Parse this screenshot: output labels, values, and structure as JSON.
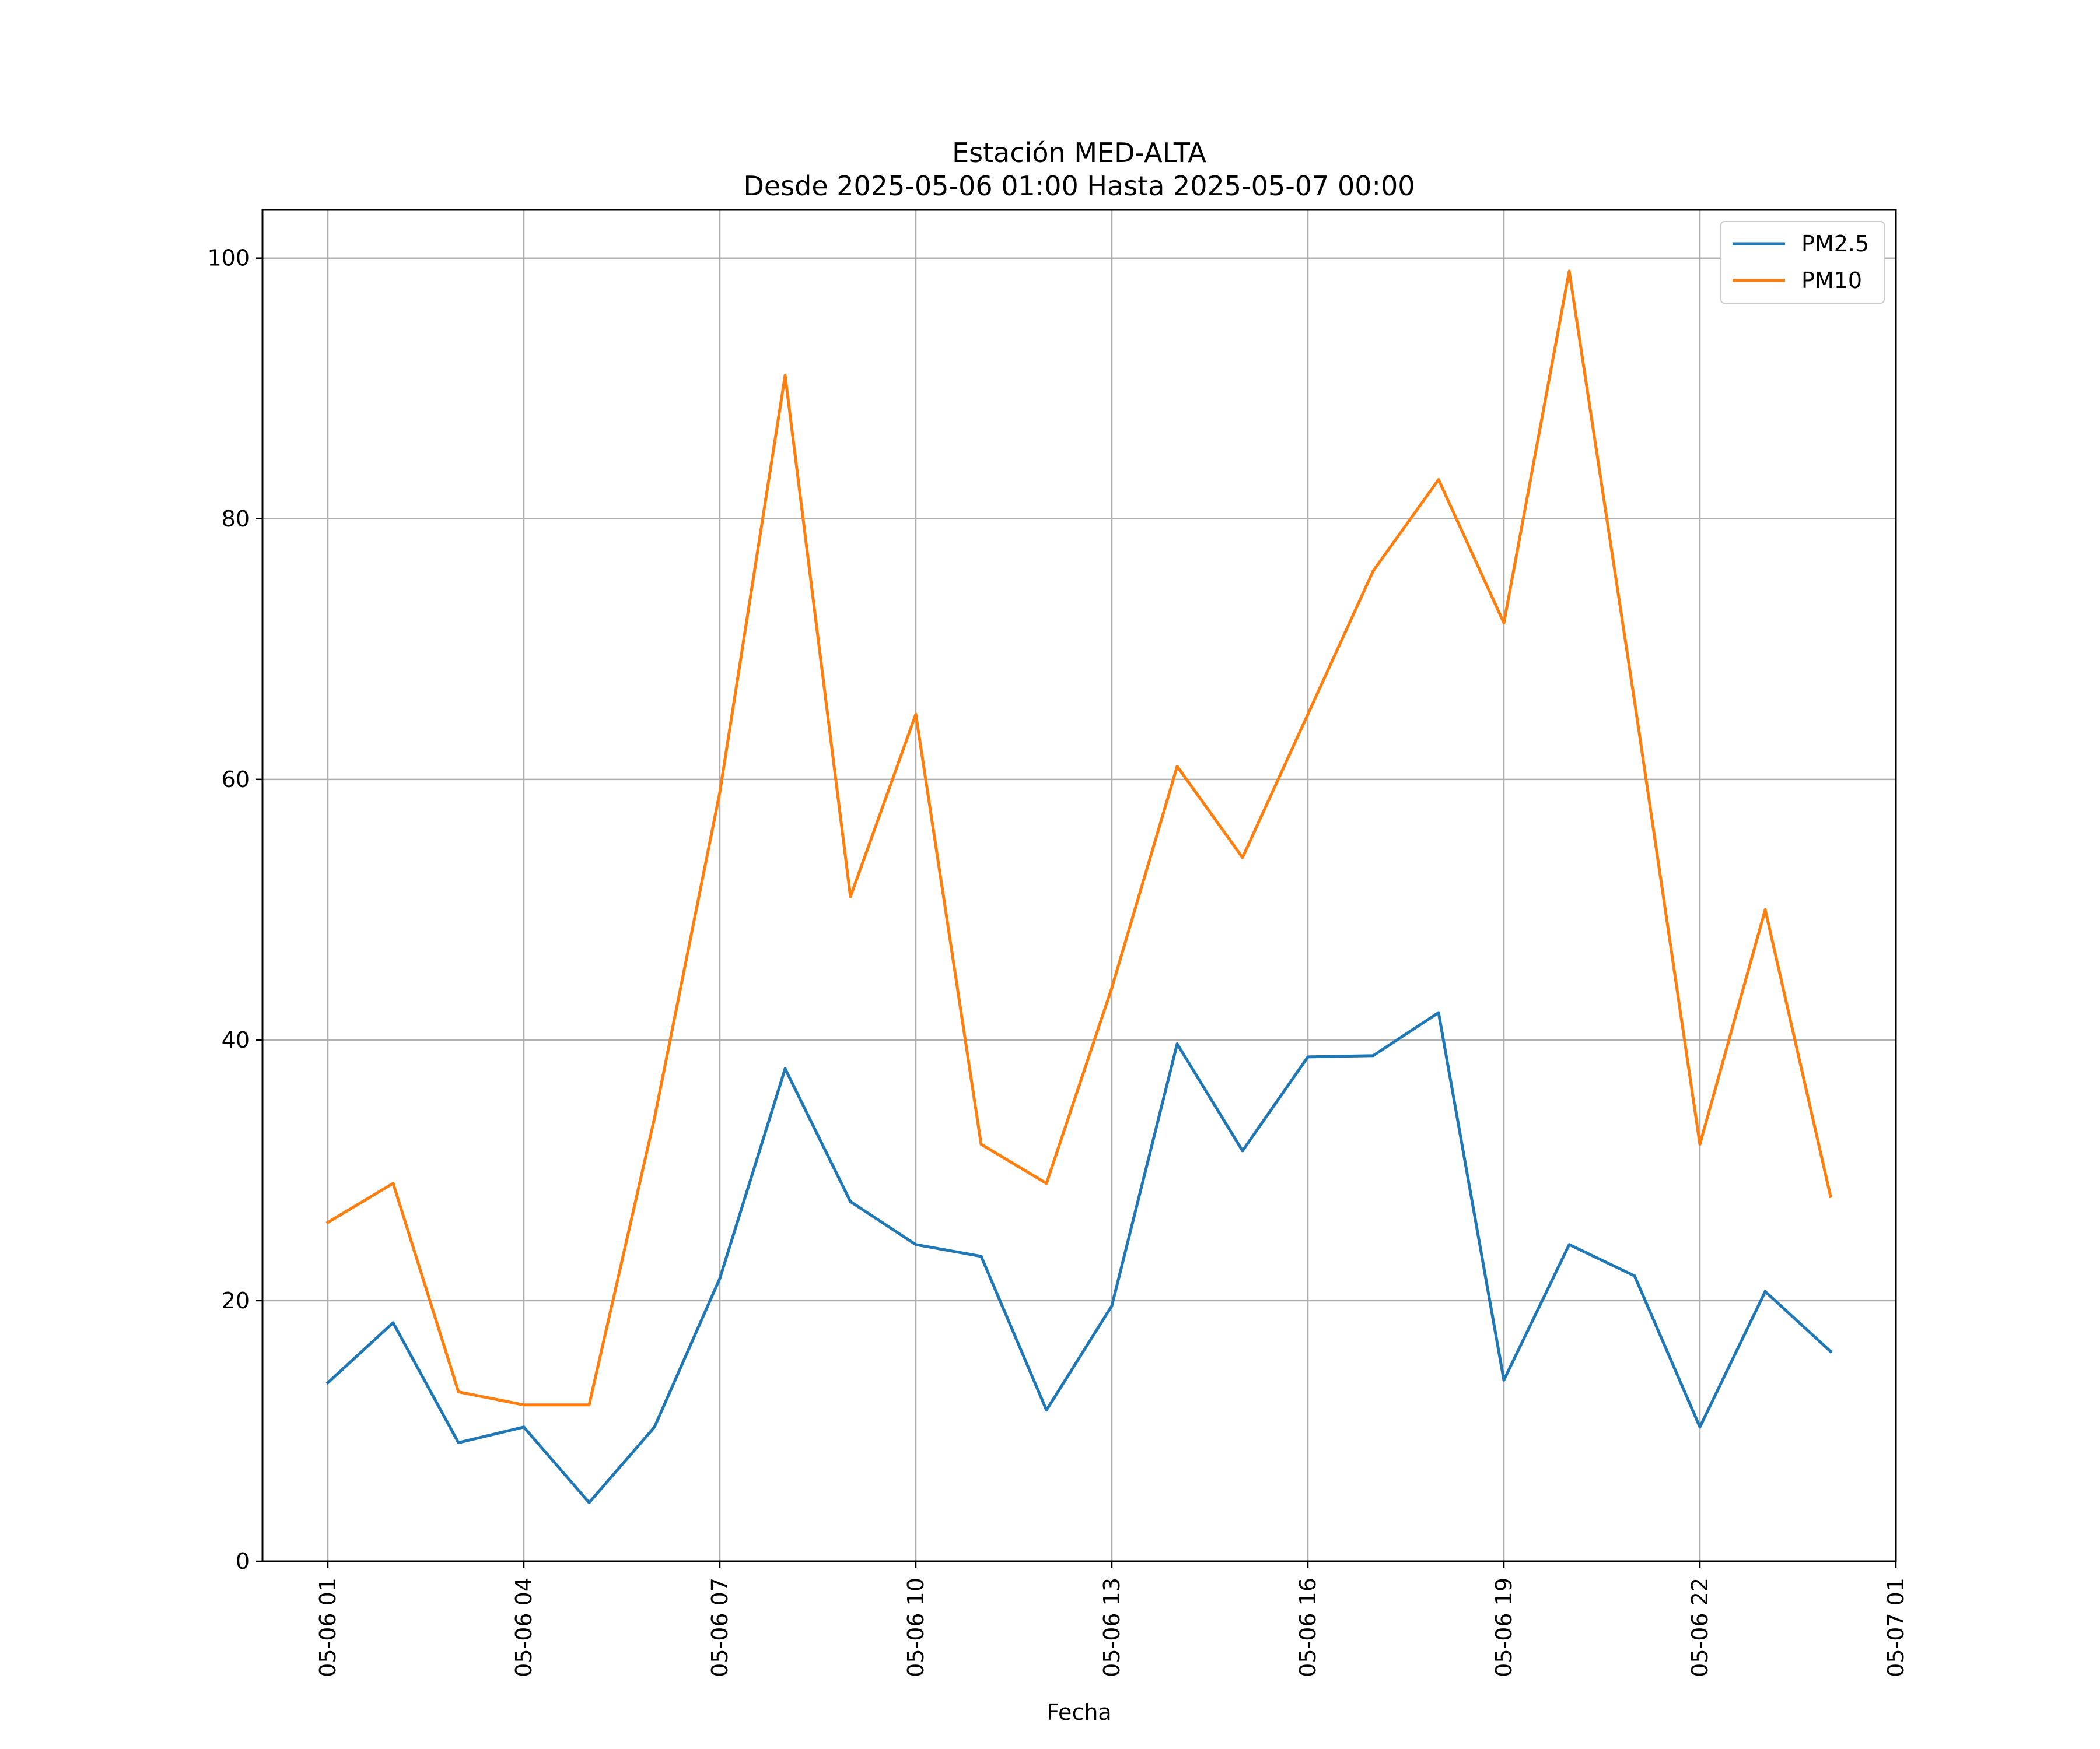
{
  "chart_data": {
    "type": "line",
    "title": "Estación MED-ALTA",
    "subtitle": "Desde 2025-05-06 01:00 Hasta 2025-05-07 00:00",
    "xlabel": "Fecha",
    "ylabel": "",
    "x": [
      "2025-05-06 01:00",
      "2025-05-06 02:00",
      "2025-05-06 03:00",
      "2025-05-06 04:00",
      "2025-05-06 05:00",
      "2025-05-06 06:00",
      "2025-05-06 07:00",
      "2025-05-06 08:00",
      "2025-05-06 09:00",
      "2025-05-06 10:00",
      "2025-05-06 11:00",
      "2025-05-06 12:00",
      "2025-05-06 13:00",
      "2025-05-06 14:00",
      "2025-05-06 15:00",
      "2025-05-06 16:00",
      "2025-05-06 17:00",
      "2025-05-06 18:00",
      "2025-05-06 19:00",
      "2025-05-06 20:00",
      "2025-05-06 21:00",
      "2025-05-06 22:00",
      "2025-05-06 23:00",
      "2025-05-07 00:00"
    ],
    "series": [
      {
        "name": "PM2.5",
        "color": "#1f77b4",
        "values": [
          13.7,
          18.3,
          9.1,
          10.3,
          4.5,
          10.3,
          21.7,
          37.8,
          27.6,
          24.3,
          23.4,
          11.6,
          19.6,
          39.7,
          31.5,
          38.7,
          38.8,
          42.1,
          13.9,
          24.3,
          21.9,
          10.3,
          20.7,
          16.1
        ]
      },
      {
        "name": "PM10",
        "color": "#ff7f0e",
        "values": [
          26,
          29,
          13,
          12,
          12,
          34,
          59,
          91,
          51,
          65,
          32,
          29,
          44,
          61,
          54,
          65,
          76,
          83,
          72,
          99,
          66,
          32,
          50,
          28
        ]
      }
    ],
    "xticks": [
      "05-06 01",
      "05-06 04",
      "05-06 07",
      "05-06 10",
      "05-06 13",
      "05-06 16",
      "05-06 19",
      "05-06 22",
      "05-07 01"
    ],
    "xtick_dates": [
      "2025-05-06 01:00",
      "2025-05-06 04:00",
      "2025-05-06 07:00",
      "2025-05-06 10:00",
      "2025-05-06 13:00",
      "2025-05-06 16:00",
      "2025-05-06 19:00",
      "2025-05-06 22:00",
      "2025-05-07 01:00"
    ],
    "yticks": [
      0,
      20,
      40,
      60,
      80,
      100
    ],
    "xlim": [
      "2025-05-06 00:00",
      "2025-05-07 01:00"
    ],
    "ylim": [
      0,
      103.7
    ],
    "grid": true,
    "legend_position": "upper right"
  }
}
